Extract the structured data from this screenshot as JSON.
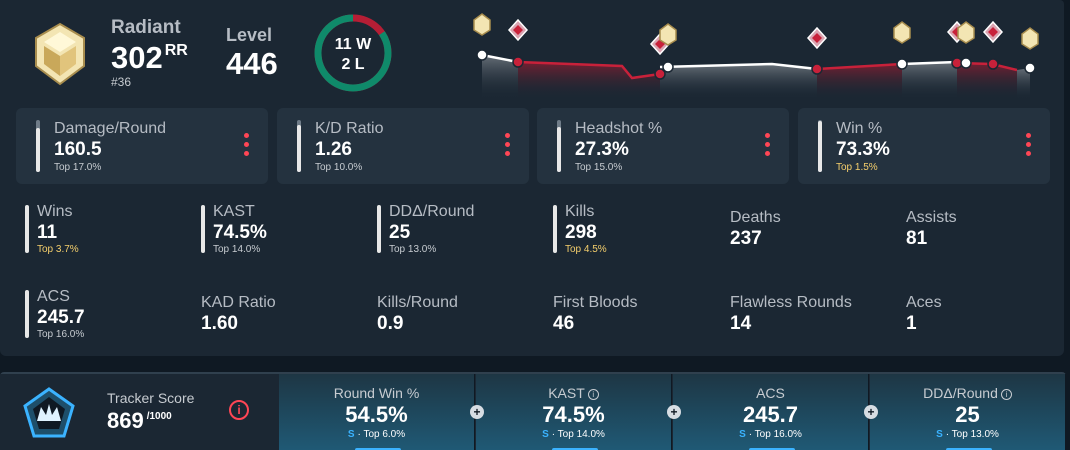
{
  "rank": {
    "name": "Radiant",
    "rr": "302",
    "rr_unit": "RR",
    "position": "#36"
  },
  "level": {
    "label": "Level",
    "value": "446"
  },
  "record": {
    "wins": "11 W",
    "losses": "2 L",
    "win_fraction": 0.846
  },
  "colors": {
    "accent": "#ff4655",
    "win": "#0f8a6a",
    "loss": "#b51e35",
    "tier_s": "#3bb3ff",
    "gold": "#f5cf6c"
  },
  "main_stats": [
    {
      "label": "Damage/Round",
      "value": "160.5",
      "rank": "Top 17.0%",
      "gold": false,
      "fill": 0.85
    },
    {
      "label": "K/D Ratio",
      "value": "1.26",
      "rank": "Top 10.0%",
      "gold": false,
      "fill": 0.9
    },
    {
      "label": "Headshot %",
      "value": "27.3%",
      "rank": "Top 15.0%",
      "gold": false,
      "fill": 0.86
    },
    {
      "label": "Win %",
      "value": "73.3%",
      "rank": "Top 1.5%",
      "gold": true,
      "fill": 0.98
    }
  ],
  "secondary_stats": [
    {
      "label": "Wins",
      "value": "11",
      "rank": "Top 3.7%",
      "gold": true
    },
    {
      "label": "KAST",
      "value": "74.5%",
      "rank": "Top 14.0%",
      "gold": false
    },
    {
      "label": "DDΔ/Round",
      "value": "25",
      "rank": "Top 13.0%",
      "gold": false
    },
    {
      "label": "Kills",
      "value": "298",
      "rank": "Top 4.5%",
      "gold": true
    },
    {
      "label": "Deaths",
      "value": "237"
    },
    {
      "label": "Assists",
      "value": "81"
    },
    {
      "label": "ACS",
      "value": "245.7",
      "rank": "Top 16.0%",
      "gold": false
    },
    {
      "label": "KAD Ratio",
      "value": "1.60"
    },
    {
      "label": "Kills/Round",
      "value": "0.9"
    },
    {
      "label": "First Bloods",
      "value": "46"
    },
    {
      "label": "Flawless Rounds",
      "value": "14"
    },
    {
      "label": "Aces",
      "value": "1"
    }
  ],
  "tracker": {
    "label": "Tracker Score",
    "value": "869",
    "max": "/1000",
    "info_icon": "info-icon"
  },
  "score_columns": [
    {
      "label": "Round Win %",
      "value": "54.5%",
      "tier": "S",
      "rank": "· Top 6.0%",
      "info": false
    },
    {
      "label": "KAST",
      "value": "74.5%",
      "tier": "S",
      "rank": "· Top 14.0%",
      "info": true
    },
    {
      "label": "ACS",
      "value": "245.7",
      "tier": "S",
      "rank": "· Top 16.0%",
      "info": false
    },
    {
      "label": "DDΔ/Round",
      "value": "25",
      "tier": "S",
      "rank": "· Top 13.0%",
      "info": true
    }
  ]
}
